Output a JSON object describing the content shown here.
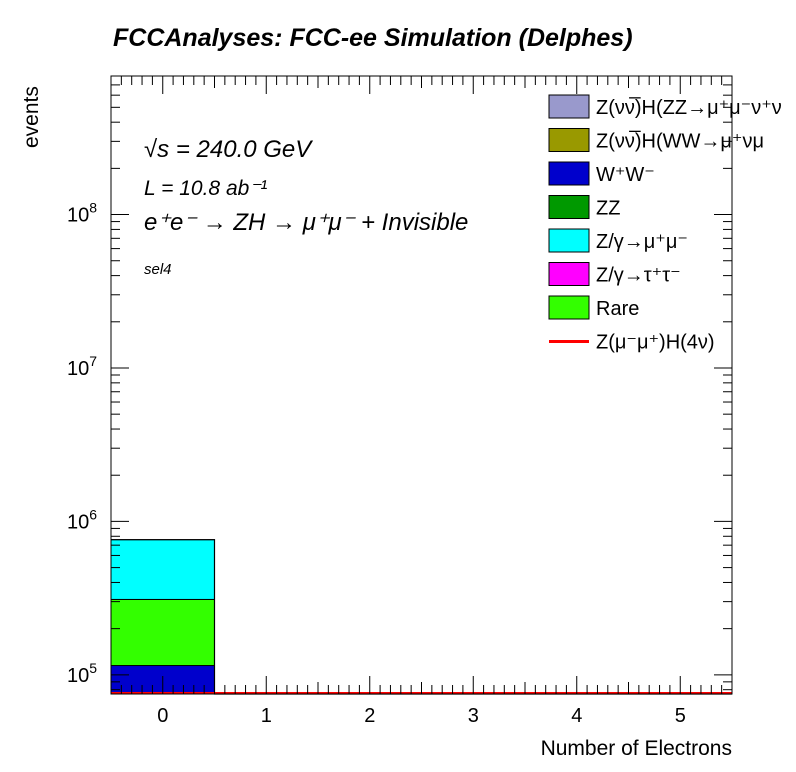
{
  "chart_data": {
    "type": "bar",
    "title": "FCCAnalyses: FCC-ee Simulation (Delphes)",
    "xlabel": "Number of Electrons",
    "ylabel": "events",
    "x_tick_labels": [
      "0",
      "1",
      "2",
      "3",
      "4",
      "5"
    ],
    "y_tick_labels": [
      "10",
      "10",
      "10",
      "10"
    ],
    "y_tick_exponents": [
      "5",
      "6",
      "7",
      "8"
    ],
    "y_tick_values": [
      100000,
      1000000,
      10000000,
      100000000
    ],
    "xlim": [
      -0.5,
      5.5
    ],
    "ylim": [
      75000,
      800000000
    ],
    "y_scale": "log",
    "stacked": true,
    "bin_edges": [
      -0.5,
      0.5,
      1.5,
      2.5,
      3.5,
      4.5,
      5.5
    ],
    "series": [
      {
        "name": "W⁺W⁻",
        "color": "#0000cc",
        "values": [
          115000,
          0,
          0,
          0,
          0,
          0
        ]
      },
      {
        "name": "Rare",
        "color": "#33ff00",
        "values": [
          195000,
          0,
          0,
          0,
          0,
          0
        ]
      },
      {
        "name": "Z/γ→μ⁺μ⁻",
        "color": "#00ffff",
        "values": [
          450000,
          0,
          0,
          0,
          0,
          0
        ]
      }
    ],
    "signal": {
      "name": "Z(μ⁻μ⁺)H(4ν)",
      "color": "#ff0000",
      "values": [
        0,
        0,
        0,
        0,
        0,
        0
      ]
    },
    "legend": {
      "placement": "top-right",
      "entries": [
        {
          "label": "Z(νν̅)H(ZZ→μ⁺μ⁻ν⁺ν",
          "color": "#9999cc",
          "kind": "box"
        },
        {
          "label": "Z(νν̅)H(WW→μ⁺νμ",
          "color": "#999900",
          "kind": "box"
        },
        {
          "label": "W⁺W⁻",
          "color": "#0000cc",
          "kind": "box"
        },
        {
          "label": "ZZ",
          "color": "#009900",
          "kind": "box"
        },
        {
          "label": "Z/γ→μ⁺μ⁻",
          "color": "#00ffff",
          "kind": "box"
        },
        {
          "label": "Z/γ→τ⁺τ⁻",
          "color": "#ff00ff",
          "kind": "box"
        },
        {
          "label": "Rare",
          "color": "#33ff00",
          "kind": "box"
        },
        {
          "label": "Z(μ⁻μ⁺)H(4ν)",
          "color": "#ff0000",
          "kind": "line"
        }
      ]
    },
    "annotations": {
      "sqrt_s": "√s = 240.0 GeV",
      "lumi": "L = 10.8 ab⁻¹",
      "process": "e⁺e⁻ → ZH → μ⁺μ⁻ + Invisible",
      "selection": "sel4"
    }
  }
}
